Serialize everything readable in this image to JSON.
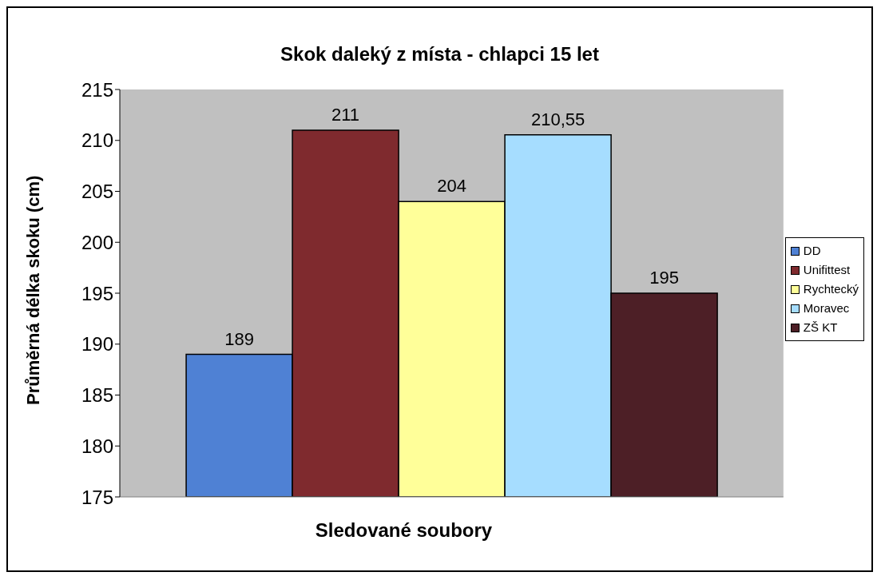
{
  "chart_data": {
    "type": "bar",
    "title": "Skok daleký z místa - chlapci 15 let",
    "xlabel": "Sledované soubory",
    "ylabel": "Průměrná délka skoku (cm)",
    "categories": [
      null
    ],
    "series": [
      {
        "name": "DD",
        "color": "#4f81d4",
        "values": [
          189
        ],
        "value_labels": [
          "189"
        ]
      },
      {
        "name": "Unifittest",
        "color": "#7f2a2e",
        "values": [
          211
        ],
        "value_labels": [
          "211"
        ]
      },
      {
        "name": "Rychtecký",
        "color": "#ffff99",
        "values": [
          204
        ],
        "value_labels": [
          "204"
        ]
      },
      {
        "name": "Moravec",
        "color": "#a6ddff",
        "values": [
          210.55
        ],
        "value_labels": [
          "210,55"
        ]
      },
      {
        "name": "ZŠ KT",
        "color": "#4d1f26",
        "values": [
          195
        ],
        "value_labels": [
          "195"
        ]
      }
    ],
    "ylim": [
      175,
      215
    ],
    "yticks": [
      175,
      180,
      185,
      190,
      195,
      200,
      205,
      210,
      215
    ],
    "grid": false,
    "legend": "right"
  }
}
